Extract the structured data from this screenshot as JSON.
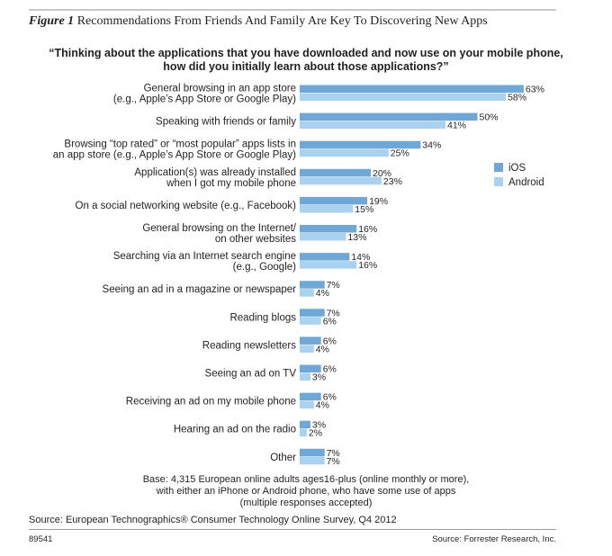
{
  "figure": {
    "label": "Figure 1",
    "title": "Recommendations From Friends And Family Are Key To Discovering New Apps"
  },
  "question": [
    "“Thinking about the applications that you have downloaded and now use on your mobile phone,",
    "how did you initially learn about those applications?”"
  ],
  "chart_data": {
    "type": "bar",
    "orientation": "horizontal",
    "categories": [
      [
        "General browsing in an app store",
        "(e.g., Apple’s App Store or Google Play)"
      ],
      [
        "Speaking with friends or family"
      ],
      [
        "Browsing “top rated” or “most popular” apps lists in",
        "an app store (e.g., Apple’s App Store or Google Play)"
      ],
      [
        "Application(s) was already installed",
        "when I got my mobile phone"
      ],
      [
        "On a social networking website (e.g., Facebook)"
      ],
      [
        "General browsing on the Internet/",
        "on other websites"
      ],
      [
        "Searching via an Internet search engine",
        "(e.g., Google)"
      ],
      [
        "Seeing an ad in a magazine or newspaper"
      ],
      [
        "Reading blogs"
      ],
      [
        "Reading newsletters"
      ],
      [
        "Seeing an ad on TV"
      ],
      [
        "Receiving an ad on my mobile phone"
      ],
      [
        "Hearing an ad on the radio"
      ],
      [
        "Other"
      ]
    ],
    "series": [
      {
        "name": "iOS",
        "color": "#6fa8d6",
        "values": [
          63,
          50,
          34,
          20,
          19,
          16,
          14,
          7,
          7,
          6,
          6,
          6,
          3,
          7
        ]
      },
      {
        "name": "Android",
        "color": "#a9d2f0",
        "values": [
          58,
          41,
          25,
          23,
          15,
          13,
          16,
          4,
          6,
          4,
          3,
          4,
          2,
          7
        ]
      }
    ],
    "value_suffix": "%",
    "legend_position": "right",
    "grid": false
  },
  "base_note": [
    "Base: 4,315 European online adults ages16-plus (online monthly or more),",
    "with either an iPhone or Android phone, who have some use of apps",
    "(multiple responses accepted)"
  ],
  "source": "Source: European Technographics® Consumer Technology Online Survey, Q4 2012",
  "footer": {
    "id": "89541",
    "source": "Source: Forrester Research, Inc."
  }
}
